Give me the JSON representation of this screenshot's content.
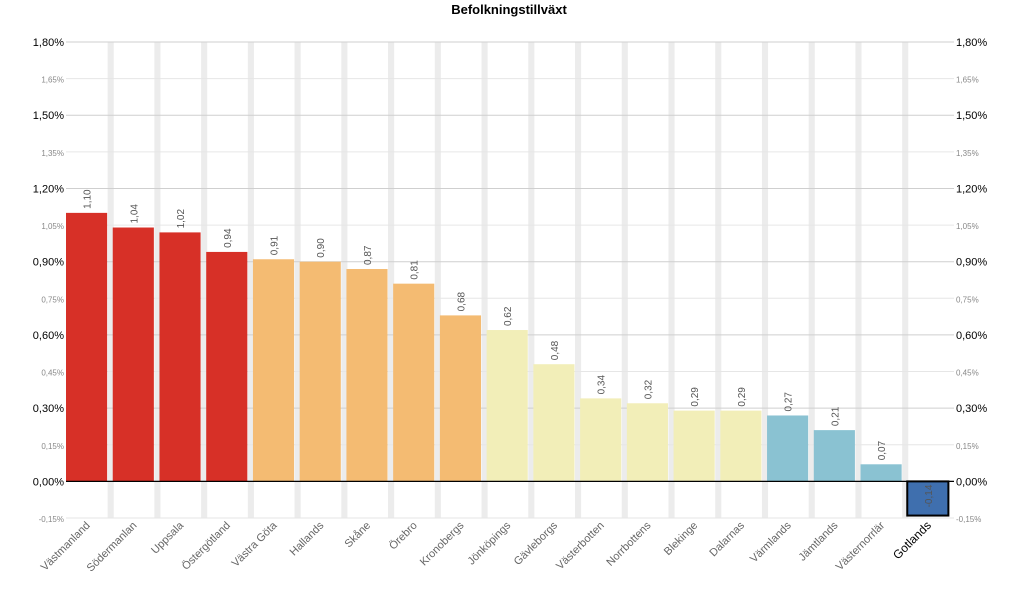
{
  "chart_data": {
    "type": "bar",
    "title": "Befolkningstillväxt",
    "categories": [
      "Västmanland",
      "Södermanlan",
      "Uppsala",
      "Östergötland",
      "Västra Göta",
      "Hallands",
      "Skåne",
      "Örebro",
      "Kronobergs",
      "Jönköpings",
      "Gävleborgs",
      "Västerbotten",
      "Norrbottens",
      "Blekinge",
      "Dalarnas",
      "Värmlands",
      "Jämtlands",
      "Västernorrlär",
      "Gotlands"
    ],
    "values": [
      1.1,
      1.04,
      1.02,
      0.94,
      0.91,
      0.9,
      0.87,
      0.81,
      0.68,
      0.62,
      0.48,
      0.34,
      0.32,
      0.29,
      0.29,
      0.27,
      0.21,
      0.07,
      -0.14
    ],
    "data_labels": [
      "1,10",
      "1,04",
      "1,02",
      "0,94",
      "0,91",
      "0,90",
      "0,87",
      "0,81",
      "0,68",
      "0,62",
      "0,48",
      "0,34",
      "0,32",
      "0,29",
      "0,29",
      "0,27",
      "0,21",
      "0,07",
      "-0,14"
    ],
    "bar_colors": [
      "#d73027",
      "#d73027",
      "#d73027",
      "#d73027",
      "#f4bb72",
      "#f4bb72",
      "#f4bb72",
      "#f4bb72",
      "#f4bb72",
      "#f2eeb8",
      "#f2eeb8",
      "#f2eeb8",
      "#f2eeb8",
      "#f2eeb8",
      "#f2eeb8",
      "#8ac2d2",
      "#8ac2d2",
      "#8ac2d2",
      "#3f6fae"
    ],
    "highlighted_category": "Gotlands",
    "ylim": [
      -0.15,
      1.8
    ],
    "major_ticks": [
      {
        "value": 1.8,
        "label": "1,80%"
      },
      {
        "value": 1.5,
        "label": "1,50%"
      },
      {
        "value": 1.2,
        "label": "1,20%"
      },
      {
        "value": 0.9,
        "label": "0,90%"
      },
      {
        "value": 0.6,
        "label": "0,60%"
      },
      {
        "value": 0.3,
        "label": "0,30%"
      },
      {
        "value": 0.0,
        "label": "0,00%"
      }
    ],
    "minor_ticks": [
      {
        "value": 1.65,
        "label": "1,65%"
      },
      {
        "value": 1.35,
        "label": "1,35%"
      },
      {
        "value": 1.05,
        "label": "1,05%"
      },
      {
        "value": 0.75,
        "label": "0,75%"
      },
      {
        "value": 0.45,
        "label": "0,45%"
      },
      {
        "value": 0.15,
        "label": "0,15%"
      },
      {
        "value": -0.15,
        "label": "-0,15%"
      }
    ],
    "axes": [
      "left",
      "right"
    ],
    "grid": true,
    "legend": "none"
  }
}
